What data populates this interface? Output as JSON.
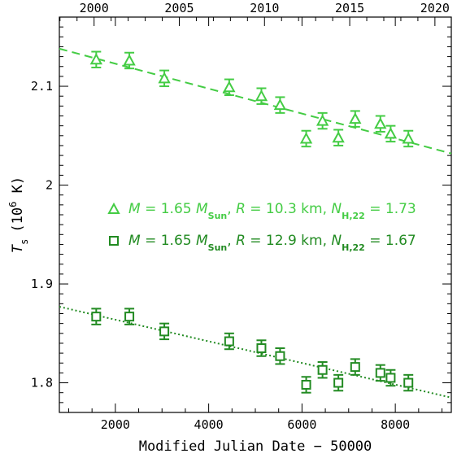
{
  "chart_data": {
    "type": "scatter",
    "title": "",
    "xlabel": "Modified Julian Date − 50000",
    "ylabel": {
      "symbol": "T",
      "subscript": "s",
      "unit_open": "(10",
      "unit_exp": "6",
      "unit_close": " K)"
    },
    "xlim": [
      800,
      9200
    ],
    "ylim": [
      1.77,
      2.17
    ],
    "x_ticks": [
      2000,
      4000,
      6000,
      8000
    ],
    "x_tick_labels": [
      "2000",
      "4000",
      "6000",
      "8000"
    ],
    "y_ticks": [
      1.8,
      1.9,
      2.0,
      2.1
    ],
    "y_tick_labels": [
      "1.8",
      "1.9",
      "2",
      "2.1"
    ],
    "top_axis": {
      "ticks": [
        2000,
        2005,
        2010,
        2015,
        2020
      ],
      "tick_labels": [
        "2000",
        "2005",
        "2010",
        "2015",
        "2020"
      ],
      "mjd_offsets": [
        1544,
        3370,
        5197,
        7023,
        8849
      ]
    },
    "grid": false,
    "legend_position": "center-right",
    "legend": [
      {
        "marker": "triangle",
        "parts": [
          {
            "t": "M",
            "it": true
          },
          {
            "t": " = 1.65 "
          },
          {
            "t": "M",
            "it": true
          },
          {
            "t": "Sun",
            "sub": true
          },
          {
            "t": ", "
          },
          {
            "t": "R",
            "it": true
          },
          {
            "t": " = 10.3 km, "
          },
          {
            "t": "N",
            "it": true
          },
          {
            "t": "H,22",
            "sub": true
          },
          {
            "t": " = 1.73"
          }
        ]
      },
      {
        "marker": "square",
        "parts": [
          {
            "t": "M",
            "it": true
          },
          {
            "t": " = 1.65 "
          },
          {
            "t": "M",
            "it": true
          },
          {
            "t": "Sun",
            "sub": true
          },
          {
            "t": ", "
          },
          {
            "t": "R",
            "it": true
          },
          {
            "t": " = 12.9 km, "
          },
          {
            "t": "N",
            "it": true
          },
          {
            "t": "H,22",
            "sub": true
          },
          {
            "t": " = 1.67"
          }
        ]
      }
    ],
    "series": [
      {
        "marker": "triangle",
        "color": "#44cc44",
        "trend_style": "dashed",
        "trend": [
          [
            800,
            2.138
          ],
          [
            9200,
            2.032
          ]
        ],
        "points": [
          {
            "x": 1590,
            "y": 2.127,
            "err": 0.008
          },
          {
            "x": 2300,
            "y": 2.126,
            "err": 0.008
          },
          {
            "x": 3050,
            "y": 2.108,
            "err": 0.008
          },
          {
            "x": 4440,
            "y": 2.099,
            "err": 0.008
          },
          {
            "x": 5130,
            "y": 2.09,
            "err": 0.008
          },
          {
            "x": 5530,
            "y": 2.081,
            "err": 0.008
          },
          {
            "x": 6090,
            "y": 2.047,
            "err": 0.008
          },
          {
            "x": 6440,
            "y": 2.065,
            "err": 0.008
          },
          {
            "x": 6780,
            "y": 2.048,
            "err": 0.008
          },
          {
            "x": 7140,
            "y": 2.067,
            "err": 0.008
          },
          {
            "x": 7680,
            "y": 2.062,
            "err": 0.008
          },
          {
            "x": 7900,
            "y": 2.052,
            "err": 0.008
          },
          {
            "x": 8280,
            "y": 2.047,
            "err": 0.008
          }
        ]
      },
      {
        "marker": "square",
        "color": "#228b22",
        "trend_style": "dotted",
        "trend": [
          [
            800,
            1.877
          ],
          [
            9200,
            1.785
          ]
        ],
        "points": [
          {
            "x": 1590,
            "y": 1.867,
            "err": 0.008
          },
          {
            "x": 2300,
            "y": 1.867,
            "err": 0.008
          },
          {
            "x": 3050,
            "y": 1.852,
            "err": 0.008
          },
          {
            "x": 4440,
            "y": 1.842,
            "err": 0.008
          },
          {
            "x": 5130,
            "y": 1.835,
            "err": 0.008
          },
          {
            "x": 5530,
            "y": 1.827,
            "err": 0.008
          },
          {
            "x": 6090,
            "y": 1.798,
            "err": 0.008
          },
          {
            "x": 6440,
            "y": 1.813,
            "err": 0.008
          },
          {
            "x": 6780,
            "y": 1.8,
            "err": 0.008
          },
          {
            "x": 7140,
            "y": 1.816,
            "err": 0.008
          },
          {
            "x": 7680,
            "y": 1.81,
            "err": 0.008
          },
          {
            "x": 7900,
            "y": 1.805,
            "err": 0.008
          },
          {
            "x": 8280,
            "y": 1.8,
            "err": 0.008
          }
        ]
      }
    ]
  }
}
